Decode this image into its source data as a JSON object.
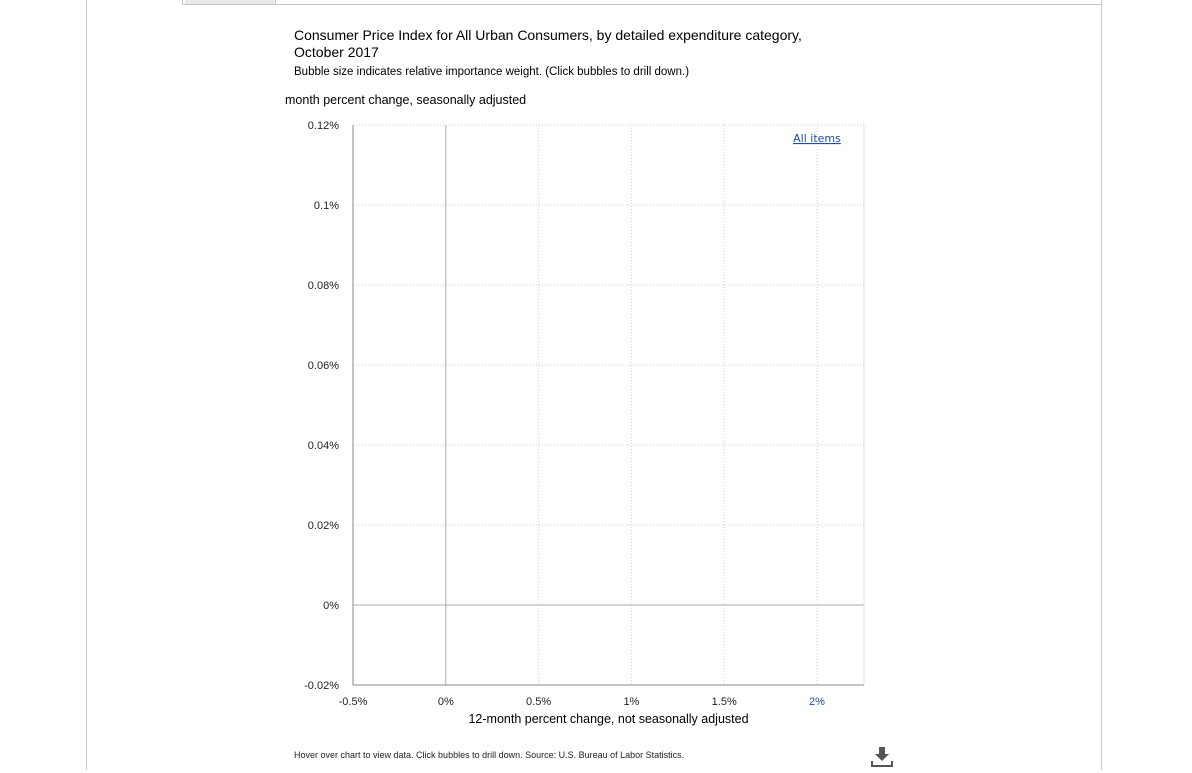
{
  "chart_data": {
    "type": "scatter",
    "title": "Consumer Price Index for All Urban Consumers, by detailed expenditure category, October 2017",
    "subtitle": "Bubble size indicates relative importance weight. (Click bubbles to drill down.)",
    "ylabel": "month percent change, seasonally adjusted",
    "xlabel": "12-month percent change, not seasonally adjusted",
    "xlim": [
      -0.5,
      2.25
    ],
    "ylim": [
      -0.02,
      0.12
    ],
    "x_ticks": [
      {
        "value": -0.5,
        "label": "-0.5%"
      },
      {
        "value": 0,
        "label": "0%"
      },
      {
        "value": 0.5,
        "label": "0.5%"
      },
      {
        "value": 1,
        "label": "1%"
      },
      {
        "value": 1.5,
        "label": "1.5%"
      },
      {
        "value": 2,
        "label": "2%"
      }
    ],
    "y_ticks": [
      {
        "value": 0.12,
        "label": "0.12%"
      },
      {
        "value": 0.1,
        "label": "0.1%"
      },
      {
        "value": 0.08,
        "label": "0.08%"
      },
      {
        "value": 0.06,
        "label": "0.06%"
      },
      {
        "value": 0.04,
        "label": "0.04%"
      },
      {
        "value": 0.02,
        "label": "0.02%"
      },
      {
        "value": 0,
        "label": "0%"
      },
      {
        "value": -0.02,
        "label": "-0.02%"
      }
    ],
    "grid": true,
    "highlight_tick_color": "#1f4e9c",
    "points": [
      {
        "label": "All items",
        "x": 2.0,
        "y": 0.115
      }
    ]
  },
  "footer": {
    "note": "Hover over chart to view data. Click bubbles to drill down. Source: U.S. Bureau of Labor Statistics."
  },
  "icons": {
    "download": "download-icon"
  }
}
